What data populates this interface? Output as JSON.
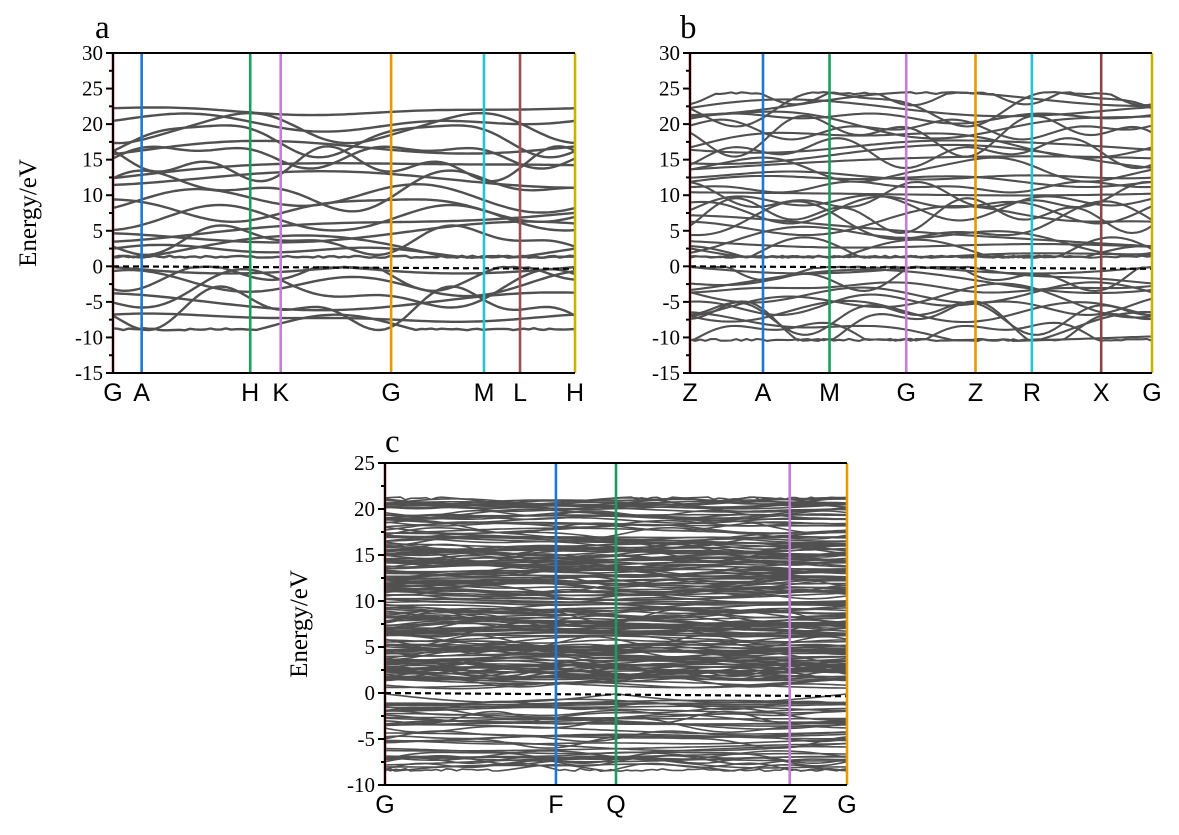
{
  "chart_data": [
    {
      "type": "line",
      "panel_label": "a",
      "ylabel": "Energy/eV",
      "xlabel": "",
      "ylim": [
        -15,
        30
      ],
      "yticks": [
        30,
        25,
        20,
        15,
        10,
        5,
        0,
        -5,
        -10,
        -15
      ],
      "kpath": [
        {
          "label": "G",
          "x": 0.0,
          "color": "#e41a1c"
        },
        {
          "label": "A",
          "x": 0.062,
          "color": "#1f77d4"
        },
        {
          "label": "H",
          "x": 0.297,
          "color": "#1a9e5c"
        },
        {
          "label": "K",
          "x": 0.363,
          "color": "#c77cdb"
        },
        {
          "label": "G",
          "x": 0.602,
          "color": "#e69a00"
        },
        {
          "label": "M",
          "x": 0.803,
          "color": "#22c5d0"
        },
        {
          "label": "L",
          "x": 0.881,
          "color": "#9a5050"
        },
        {
          "label": "H",
          "x": 1.0,
          "color": "#c8b400"
        }
      ],
      "fermi_level": 0,
      "band_color": "#505050",
      "band_count": 26,
      "band_range": [
        -9,
        22.5
      ],
      "grid": false
    },
    {
      "type": "line",
      "panel_label": "b",
      "ylabel": "",
      "xlabel": "",
      "ylim": [
        -15,
        30
      ],
      "yticks": [
        30,
        25,
        20,
        15,
        10,
        5,
        0,
        -5,
        -10,
        -15
      ],
      "kpath": [
        {
          "label": "Z",
          "x": 0.0,
          "color": "#e41a1c"
        },
        {
          "label": "A",
          "x": 0.158,
          "color": "#1f77d4"
        },
        {
          "label": "M",
          "x": 0.302,
          "color": "#1a9e5c"
        },
        {
          "label": "G",
          "x": 0.468,
          "color": "#c77cdb"
        },
        {
          "label": "Z",
          "x": 0.618,
          "color": "#e69a00"
        },
        {
          "label": "R",
          "x": 0.74,
          "color": "#22c5d0"
        },
        {
          "label": "X",
          "x": 0.89,
          "color": "#8b4545"
        },
        {
          "label": "G",
          "x": 1.0,
          "color": "#c8b400"
        }
      ],
      "fermi_level": 0,
      "band_color": "#505050",
      "band_count": 44,
      "band_range": [
        -10.5,
        24.5
      ],
      "grid": false
    },
    {
      "type": "line",
      "panel_label": "c",
      "ylabel": "Energy/eV",
      "xlabel": "",
      "ylim": [
        -10,
        25
      ],
      "yticks": [
        25,
        20,
        15,
        10,
        5,
        0,
        -5,
        -10
      ],
      "kpath": [
        {
          "label": "G",
          "x": 0.0,
          "color": "#e41a1c"
        },
        {
          "label": "F",
          "x": 0.37,
          "color": "#1f77d4"
        },
        {
          "label": "Q",
          "x": 0.5,
          "color": "#1a9e5c"
        },
        {
          "label": "Z",
          "x": 0.876,
          "color": "#c77cdb"
        },
        {
          "label": "G",
          "x": 1.0,
          "color": "#e69a00"
        }
      ],
      "fermi_level": 0,
      "band_color": "#505050",
      "band_count": 220,
      "band_range": [
        -8.5,
        21.3
      ],
      "grid": false
    }
  ]
}
